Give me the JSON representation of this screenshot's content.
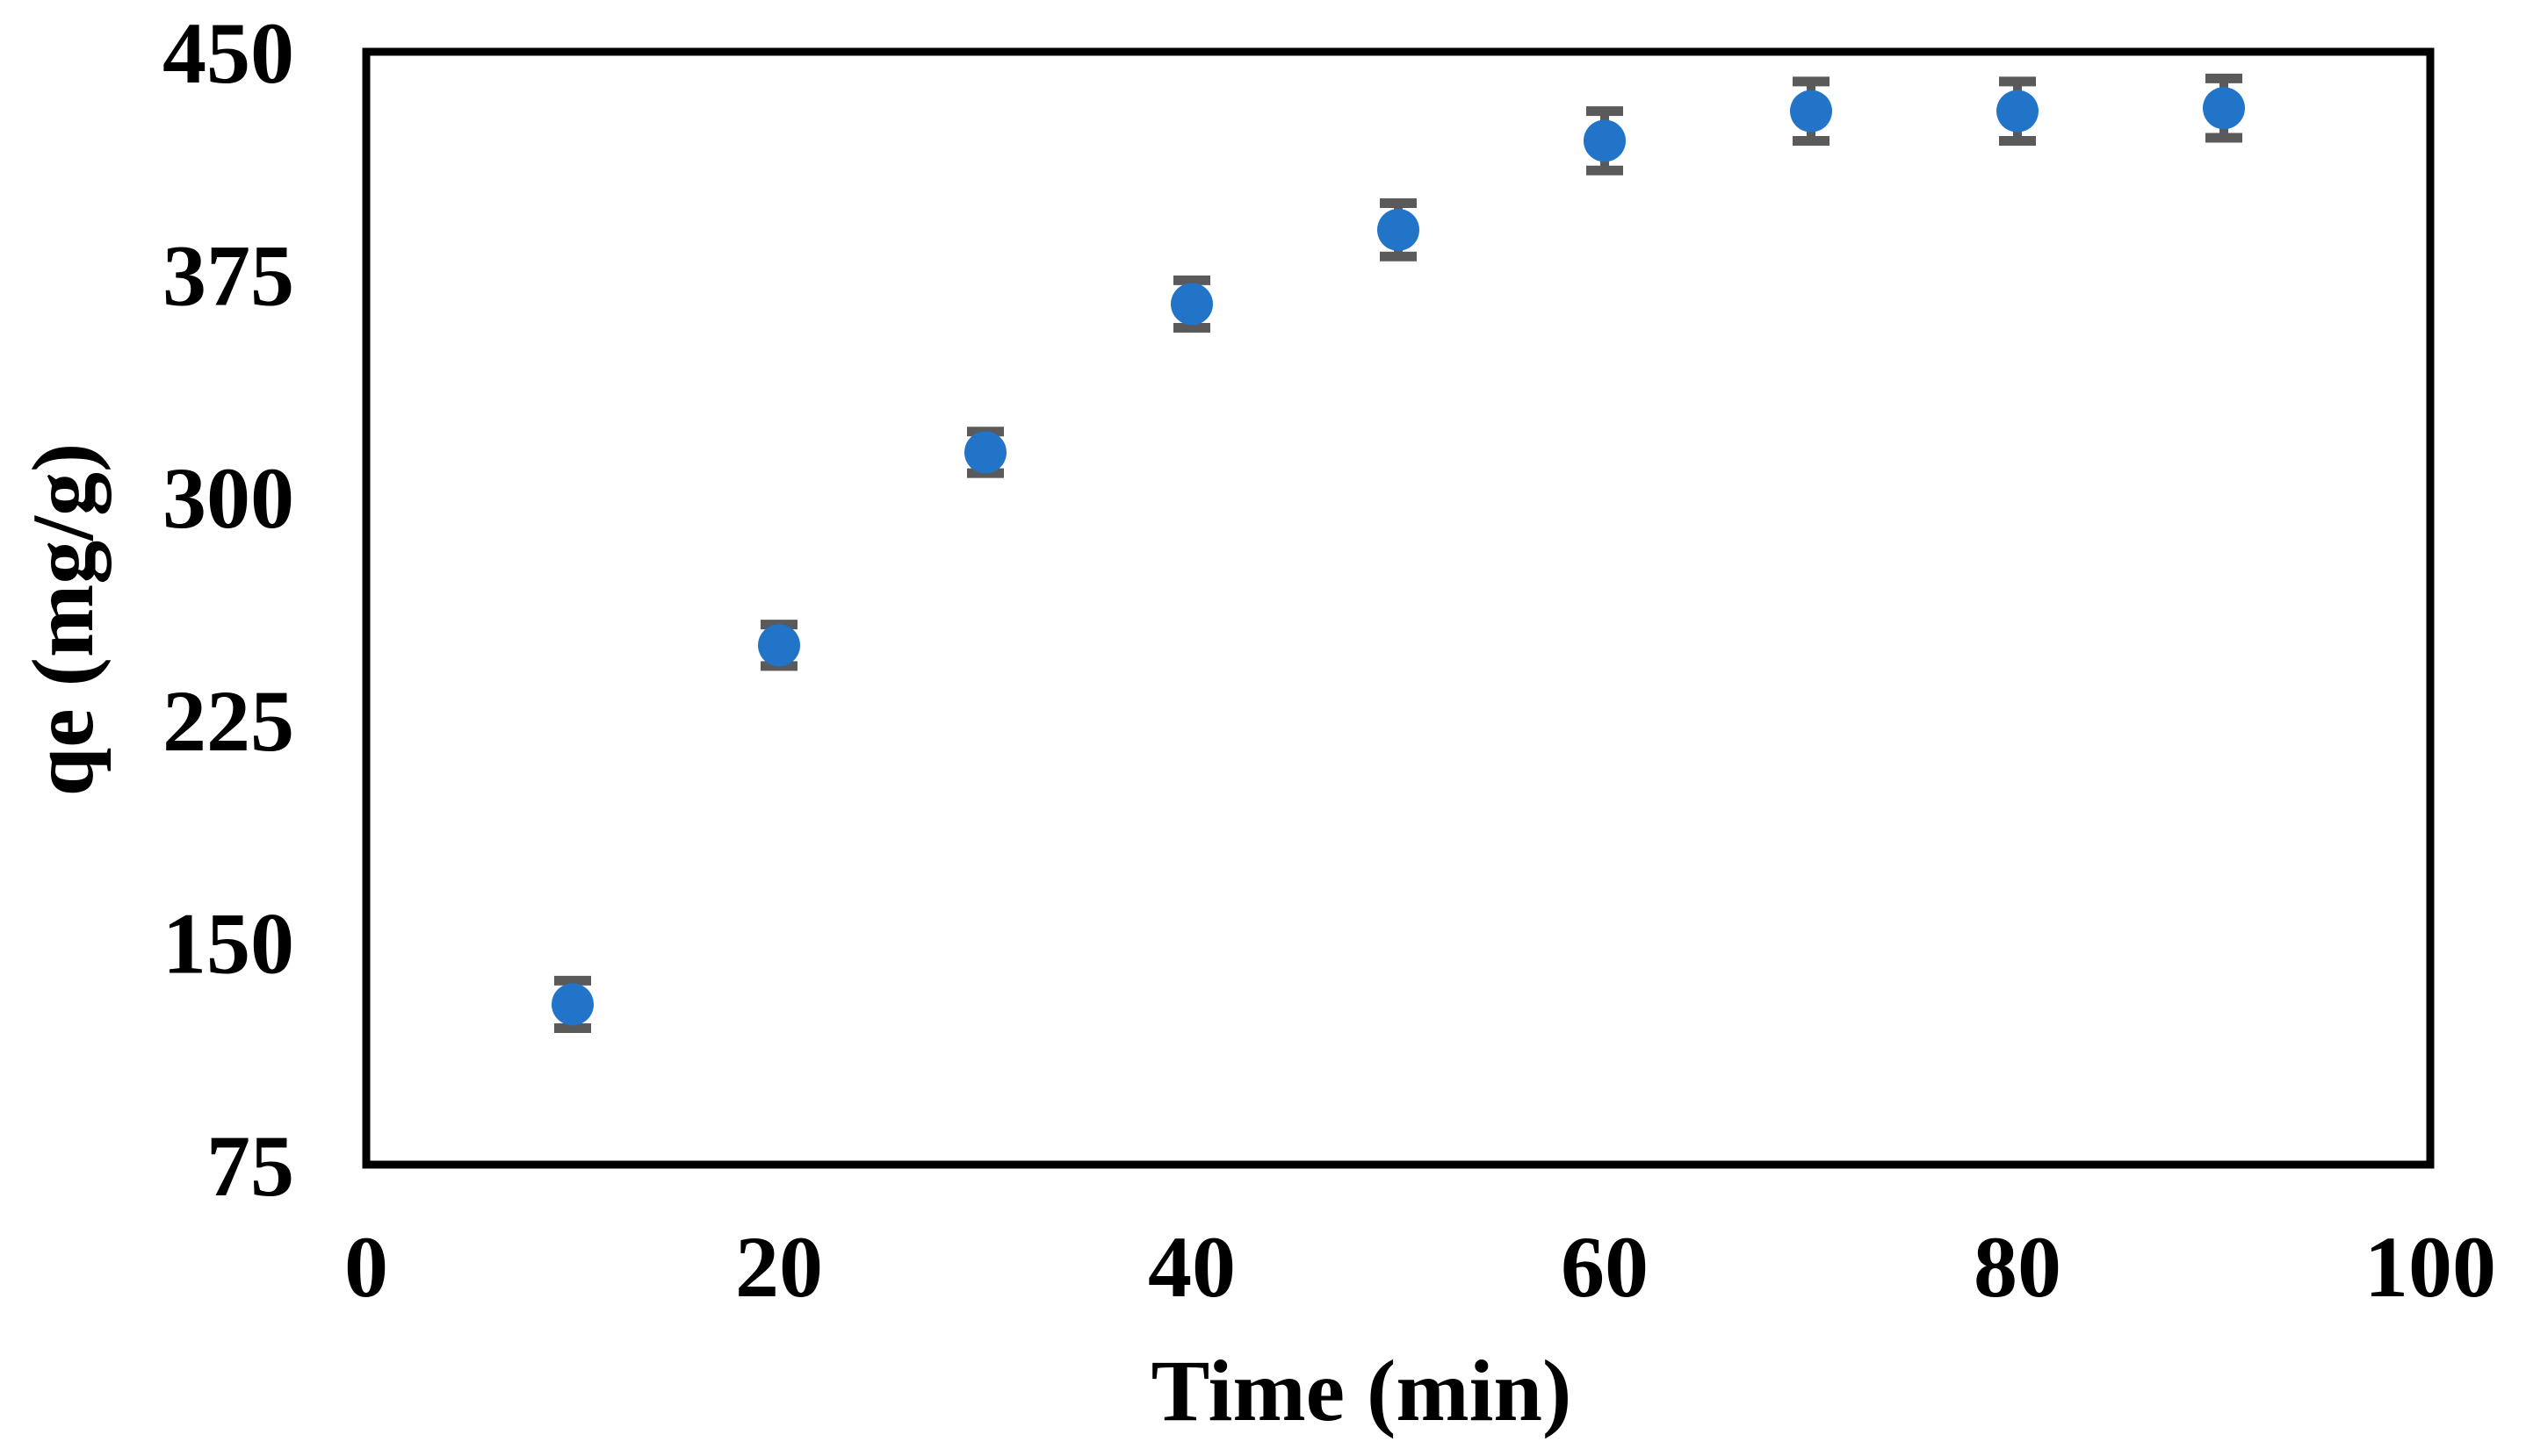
{
  "chart_data": {
    "type": "scatter",
    "title": "",
    "xlabel": "Time (min)",
    "ylabel": "qe (mg/g)",
    "x": [
      10,
      20,
      30,
      40,
      50,
      60,
      70,
      80,
      90
    ],
    "y": [
      129,
      250,
      315,
      365,
      390,
      420,
      430,
      430,
      431
    ],
    "y_error": [
      8,
      7,
      7,
      8,
      9,
      10,
      10,
      10,
      10
    ],
    "xlim": [
      0,
      100
    ],
    "ylim": [
      75,
      450
    ],
    "x_ticks": [
      0,
      20,
      40,
      60,
      80,
      100
    ],
    "y_ticks": [
      75,
      150,
      225,
      300,
      375,
      450
    ],
    "grid": "off",
    "legend": "none",
    "marker_shape": "circle",
    "marker_color": "#2274C8",
    "error_bar_color": "#5A5A5A",
    "axis_color": "#000000",
    "background_color": "#FFFFFF"
  }
}
